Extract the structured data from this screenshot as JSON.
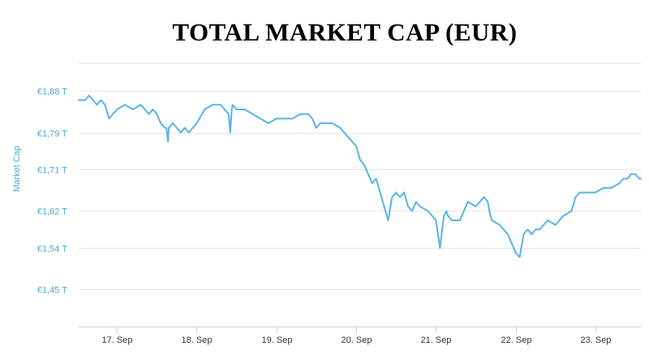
{
  "chart_data": {
    "type": "line",
    "title": "TOTAL MARKET CAP (EUR)",
    "ylabel": "Market Cap",
    "xlabel": "",
    "x_tick_labels": [
      "17. Sep",
      "18. Sep",
      "19. Sep",
      "20. Sep",
      "21. Sep",
      "22. Sep",
      "23. Sep"
    ],
    "y_tick_values": [
      1.45,
      1.54,
      1.62,
      1.71,
      1.79,
      1.88
    ],
    "y_tick_labels": [
      "€1,45 T",
      "€1,54 T",
      "€1,62 T",
      "€1,71 T",
      "€1,79 T",
      "€1,88 T"
    ],
    "ylim": [
      1.37,
      1.94
    ],
    "xlim": [
      16.52,
      23.57
    ],
    "grid": true,
    "legend": "none",
    "colors": {
      "line": "#5ab4e5",
      "axis_text": "#4aa8d8",
      "grid": "#e6e6e6",
      "tick_text": "#333333"
    },
    "series": [
      {
        "x": [
          16.52,
          16.6,
          16.65,
          16.7,
          16.75,
          16.8,
          16.85,
          16.9,
          17.0,
          17.1,
          17.2,
          17.3,
          17.35,
          17.4,
          17.45,
          17.5,
          17.55,
          17.6,
          17.62,
          17.64,
          17.65,
          17.7,
          17.8,
          17.85,
          17.9,
          18.0,
          18.1,
          18.2,
          18.3,
          18.4,
          18.42,
          18.44,
          18.45,
          18.5,
          18.6,
          18.7,
          18.8,
          18.9,
          19.0,
          19.1,
          19.2,
          19.3,
          19.4,
          19.45,
          19.5,
          19.55,
          19.6,
          19.7,
          19.8,
          19.9,
          20.0,
          20.05,
          20.1,
          20.15,
          20.2,
          20.25,
          20.3,
          20.35,
          20.4,
          20.45,
          20.5,
          20.55,
          20.6,
          20.65,
          20.7,
          20.75,
          20.8,
          20.9,
          21.0,
          21.05,
          21.1,
          21.13,
          21.15,
          21.2,
          21.3,
          21.4,
          21.5,
          21.6,
          21.65,
          21.67,
          21.7,
          21.8,
          21.85,
          21.9,
          21.95,
          22.0,
          22.05,
          22.1,
          22.15,
          22.2,
          22.25,
          22.3,
          22.35,
          22.4,
          22.5,
          22.6,
          22.7,
          22.75,
          22.8,
          22.9,
          23.0,
          23.1,
          23.2,
          23.3,
          23.35,
          23.4,
          23.45,
          23.5,
          23.55,
          23.57
        ],
        "y": [
          1.86,
          1.86,
          1.87,
          1.86,
          1.85,
          1.86,
          1.85,
          1.82,
          1.84,
          1.85,
          1.84,
          1.85,
          1.84,
          1.83,
          1.84,
          1.83,
          1.81,
          1.8,
          1.8,
          1.77,
          1.8,
          1.81,
          1.79,
          1.8,
          1.79,
          1.81,
          1.84,
          1.85,
          1.85,
          1.83,
          1.79,
          1.84,
          1.85,
          1.84,
          1.84,
          1.83,
          1.82,
          1.81,
          1.82,
          1.82,
          1.82,
          1.83,
          1.83,
          1.82,
          1.8,
          1.81,
          1.81,
          1.81,
          1.8,
          1.78,
          1.76,
          1.73,
          1.72,
          1.7,
          1.68,
          1.69,
          1.66,
          1.63,
          1.6,
          1.65,
          1.66,
          1.65,
          1.66,
          1.63,
          1.62,
          1.64,
          1.63,
          1.62,
          1.6,
          1.54,
          1.61,
          1.62,
          1.61,
          1.6,
          1.6,
          1.64,
          1.63,
          1.65,
          1.64,
          1.62,
          1.6,
          1.59,
          1.58,
          1.57,
          1.55,
          1.53,
          1.52,
          1.57,
          1.58,
          1.57,
          1.58,
          1.58,
          1.59,
          1.6,
          1.59,
          1.61,
          1.62,
          1.65,
          1.66,
          1.66,
          1.66,
          1.67,
          1.67,
          1.68,
          1.69,
          1.69,
          1.7,
          1.7,
          1.69,
          1.69
        ]
      }
    ]
  }
}
